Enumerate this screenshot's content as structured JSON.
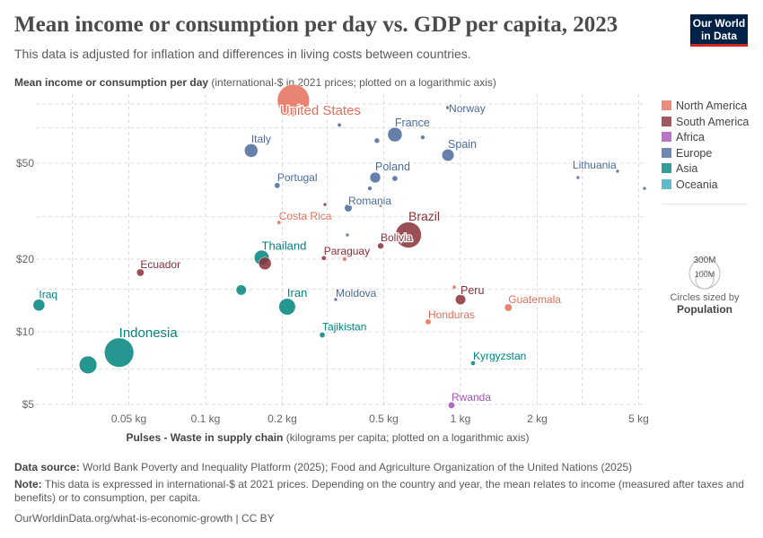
{
  "header": {
    "title": "Mean income or consumption per day vs. GDP per capita, 2023",
    "subtitle": "This data is adjusted for inflation and differences in living costs between countries.",
    "logo": "Our World in Data"
  },
  "chart_data": {
    "type": "scatter",
    "title": "Mean income or consumption per day vs. GDP per capita, 2023",
    "ylabel_bold": "Mean income or consumption per day",
    "ylabel_rest": "(international-$ in 2021 prices; plotted on a logarithmic axis)",
    "xlabel_bold": "Pulses - Waste in supply chain",
    "xlabel_rest": "(kilograms per capita; plotted on a logarithmic axis)",
    "x_scale": "log",
    "y_scale": "log",
    "xlim": [
      0.02,
      5.5
    ],
    "ylim": [
      4.8,
      95
    ],
    "x_ticks": [
      {
        "v": 0.05,
        "label": "0.05 kg"
      },
      {
        "v": 0.1,
        "label": "0.1 kg"
      },
      {
        "v": 0.2,
        "label": "0.2 kg"
      },
      {
        "v": 0.5,
        "label": "0.5 kg"
      },
      {
        "v": 1,
        "label": "1 kg"
      },
      {
        "v": 2,
        "label": "2 kg"
      },
      {
        "v": 5,
        "label": "5 kg"
      }
    ],
    "y_ticks": [
      {
        "v": 5,
        "label": "$5"
      },
      {
        "v": 10,
        "label": "$10"
      },
      {
        "v": 20,
        "label": "$20"
      },
      {
        "v": 50,
        "label": "$50"
      }
    ],
    "grid": true,
    "legend_position": "right",
    "legend": [
      {
        "name": "North America",
        "color": "#e56e5a"
      },
      {
        "name": "South America",
        "color": "#883039"
      },
      {
        "name": "Africa",
        "color": "#a652ba"
      },
      {
        "name": "Europe",
        "color": "#4c6a9c"
      },
      {
        "name": "Asia",
        "color": "#00847e"
      },
      {
        "name": "Oceania",
        "color": "#38aaba"
      }
    ],
    "size_legend": {
      "values": [
        "300M",
        "100M"
      ],
      "caption": "Circles sized by",
      "variable": "Population"
    },
    "points": [
      {
        "entity": "United States",
        "x": 0.221,
        "y": 91,
        "continent": "North America",
        "population_m": 335
      },
      {
        "entity": "",
        "x": 0.335,
        "y": 72,
        "continent": "Europe",
        "population_m": 5
      },
      {
        "entity": "Italy",
        "x": 0.151,
        "y": 56.4,
        "continent": "Europe",
        "population_m": 59
      },
      {
        "entity": "",
        "x": 0.47,
        "y": 62,
        "continent": "Europe",
        "population_m": 9
      },
      {
        "entity": "France",
        "x": 0.553,
        "y": 65.7,
        "continent": "Europe",
        "population_m": 68
      },
      {
        "entity": "",
        "x": 0.711,
        "y": 64,
        "continent": "Europe",
        "population_m": 6
      },
      {
        "entity": "Norway",
        "x": 0.893,
        "y": 85,
        "continent": "Europe",
        "population_m": 5.5
      },
      {
        "entity": "Spain",
        "x": 0.893,
        "y": 54,
        "continent": "Europe",
        "population_m": 48
      },
      {
        "entity": "Poland",
        "x": 0.463,
        "y": 43.6,
        "continent": "Europe",
        "population_m": 37
      },
      {
        "entity": "",
        "x": 0.553,
        "y": 43.2,
        "continent": "Europe",
        "population_m": 10
      },
      {
        "entity": "Portugal",
        "x": 0.191,
        "y": 40.4,
        "continent": "Europe",
        "population_m": 10.4
      },
      {
        "entity": "",
        "x": 0.441,
        "y": 39.3,
        "continent": "Europe",
        "population_m": 6
      },
      {
        "entity": "Lithuania",
        "x": 4.13,
        "y": 46.3,
        "continent": "Europe",
        "population_m": 2.9
      },
      {
        "entity": "",
        "x": 2.89,
        "y": 43.6,
        "continent": "Europe",
        "population_m": 2
      },
      {
        "entity": "",
        "x": 5.27,
        "y": 39.3,
        "continent": "Europe",
        "population_m": 2
      },
      {
        "entity": "",
        "x": 0.294,
        "y": 33.7,
        "continent": "South America",
        "population_m": 3.4
      },
      {
        "entity": "Romania",
        "x": 0.363,
        "y": 32.6,
        "continent": "Europe",
        "population_m": 19
      },
      {
        "entity": "",
        "x": 0.486,
        "y": 33.4,
        "continent": "Europe",
        "population_m": 1.5
      },
      {
        "entity": "Costa Rica",
        "x": 0.194,
        "y": 28.4,
        "continent": "North America",
        "population_m": 5.2
      },
      {
        "entity": "",
        "x": 0.36,
        "y": 25.2,
        "continent": "Europe",
        "population_m": 4
      },
      {
        "entity": "Brazil",
        "x": 0.625,
        "y": 25.2,
        "continent": "South America",
        "population_m": 216
      },
      {
        "entity": "Bolivia",
        "x": 0.486,
        "y": 22.7,
        "continent": "South America",
        "population_m": 12
      },
      {
        "entity": "Paraguay",
        "x": 0.291,
        "y": 20.2,
        "continent": "South America",
        "population_m": 6.9
      },
      {
        "entity": "",
        "x": 0.351,
        "y": 20.0,
        "continent": "North America",
        "population_m": 6.3
      },
      {
        "entity": "Thailand",
        "x": 0.166,
        "y": 20.3,
        "continent": "Asia",
        "population_m": 71
      },
      {
        "entity": "",
        "x": 0.171,
        "y": 19.2,
        "continent": "South America",
        "population_m": 52
      },
      {
        "entity": "Ecuador",
        "x": 0.0555,
        "y": 17.6,
        "continent": "South America",
        "population_m": 18
      },
      {
        "entity": "",
        "x": 0.138,
        "y": 14.9,
        "continent": "Asia",
        "population_m": 34
      },
      {
        "entity": "Iran",
        "x": 0.209,
        "y": 12.7,
        "continent": "Asia",
        "population_m": 89
      },
      {
        "entity": "Moldova",
        "x": 0.324,
        "y": 13.6,
        "continent": "Europe",
        "population_m": 2.5
      },
      {
        "entity": "Iraq",
        "x": 0.0222,
        "y": 12.9,
        "continent": "Asia",
        "population_m": 45
      },
      {
        "entity": "",
        "x": 0.945,
        "y": 15.3,
        "continent": "North America",
        "population_m": 5
      },
      {
        "entity": "Peru",
        "x": 1.0,
        "y": 13.6,
        "continent": "South America",
        "population_m": 34
      },
      {
        "entity": "Guatemala",
        "x": 1.54,
        "y": 12.6,
        "continent": "North America",
        "population_m": 18
      },
      {
        "entity": "Honduras",
        "x": 0.747,
        "y": 11.0,
        "continent": "North America",
        "population_m": 10.6
      },
      {
        "entity": "Tajikistan",
        "x": 0.287,
        "y": 9.7,
        "continent": "Asia",
        "population_m": 10
      },
      {
        "entity": "Kyrgyzstan",
        "x": 1.12,
        "y": 7.41,
        "continent": "Asia",
        "population_m": 7
      },
      {
        "entity": "Indonesia",
        "x": 0.0458,
        "y": 8.2,
        "continent": "Asia",
        "population_m": 278
      },
      {
        "entity": "",
        "x": 0.0346,
        "y": 7.29,
        "continent": "Asia",
        "population_m": 100
      },
      {
        "entity": "Rwanda",
        "x": 0.922,
        "y": 4.96,
        "continent": "Africa",
        "population_m": 14
      }
    ]
  },
  "footer": {
    "source_label": "Data source:",
    "source": "World Bank Poverty and Inequality Platform (2025); Food and Agriculture Organization of the United Nations (2025)",
    "note_label": "Note:",
    "note": "This data is expressed in international-$ at 2021 prices. Depending on the country and year, the mean relates to income (measured after taxes and benefits) or to consumption, per capita.",
    "url": "OurWorldinData.org/what-is-economic-growth | CC BY"
  }
}
